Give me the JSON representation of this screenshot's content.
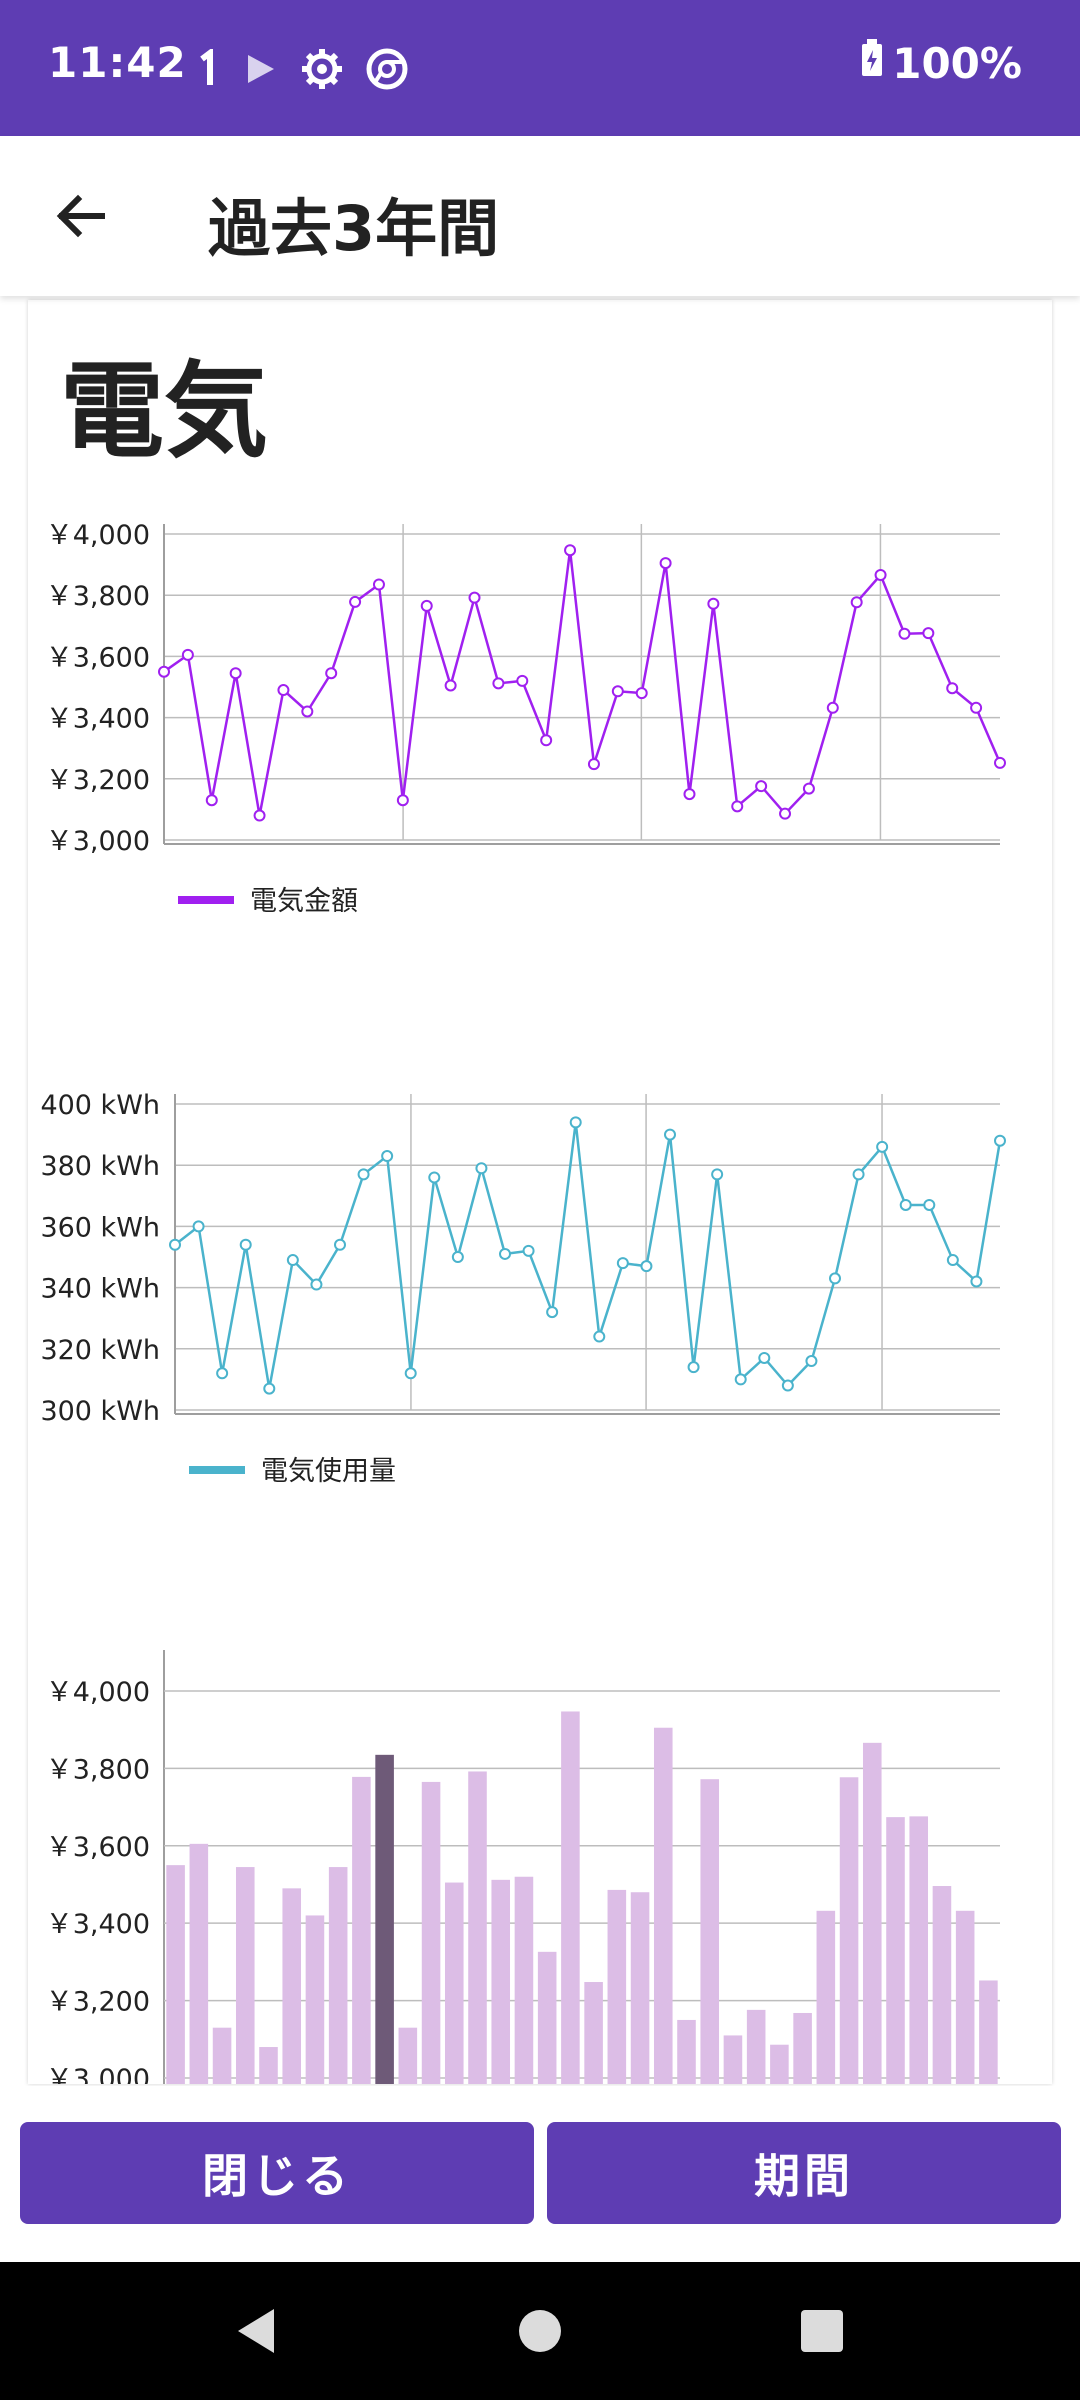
{
  "status_bar": {
    "time": "11:42",
    "battery": "100%",
    "icons": [
      "notification-1-icon",
      "play-icon",
      "gear-icon",
      "chrome-icon"
    ]
  },
  "app_bar": {
    "title": "過去3年間"
  },
  "card": {
    "title": "電気"
  },
  "colors": {
    "accent": "#5e3db3",
    "amount_line": "#a020f0",
    "usage_line": "#4ab3cc",
    "bar": "#dcbde6",
    "bar_highlight": "#6e5a78"
  },
  "chart_data": [
    {
      "type": "line",
      "series": [
        {
          "name": "電気金額",
          "values": [
            3550,
            3605,
            3130,
            3545,
            3080,
            3490,
            3420,
            3545,
            3778,
            3835,
            3130,
            3765,
            3505,
            3792,
            3512,
            3520,
            3326,
            3947,
            3248,
            3486,
            3480,
            3905,
            3150,
            3772,
            3110,
            3176,
            3086,
            3168,
            3432,
            3777,
            3866,
            3674,
            3676,
            3496,
            3432,
            3252
          ]
        }
      ],
      "y_ticks": [
        "￥4,000",
        "￥3,800",
        "￥3,600",
        "￥3,400",
        "￥3,200",
        "￥3,000"
      ],
      "ylim": [
        3000,
        4000
      ],
      "legend": "bottom-left",
      "grid": true
    },
    {
      "type": "line",
      "series": [
        {
          "name": "電気使用量",
          "values": [
            354,
            360,
            312,
            354,
            307,
            349,
            341,
            354,
            377,
            383,
            312,
            376,
            350,
            379,
            351,
            352,
            332,
            394,
            324,
            348,
            347,
            390,
            314,
            377,
            310,
            317,
            308,
            316,
            343,
            377,
            386,
            367,
            367,
            349,
            342,
            388
          ]
        }
      ],
      "y_ticks": [
        "400 kWh",
        "380 kWh",
        "360 kWh",
        "340 kWh",
        "320 kWh",
        "300 kWh"
      ],
      "ylim": [
        300,
        400
      ],
      "legend": "bottom-left",
      "grid": true
    },
    {
      "type": "bar",
      "values": [
        3550,
        3605,
        3130,
        3545,
        3080,
        3490,
        3420,
        3545,
        3778,
        3835,
        3130,
        3765,
        3505,
        3792,
        3512,
        3520,
        3326,
        3947,
        3248,
        3486,
        3480,
        3905,
        3150,
        3772,
        3110,
        3176,
        3086,
        3168,
        3432,
        3777,
        3866,
        3674,
        3676,
        3496,
        3432,
        3252
      ],
      "highlight_index": 9,
      "y_ticks": [
        "￥4,000",
        "￥3,800",
        "￥3,600",
        "￥3,400",
        "￥3,200",
        "￥3,000"
      ],
      "ylim": [
        3000,
        4080
      ],
      "grid": true
    }
  ],
  "buttons": {
    "close": "閉じる",
    "period": "期間"
  }
}
